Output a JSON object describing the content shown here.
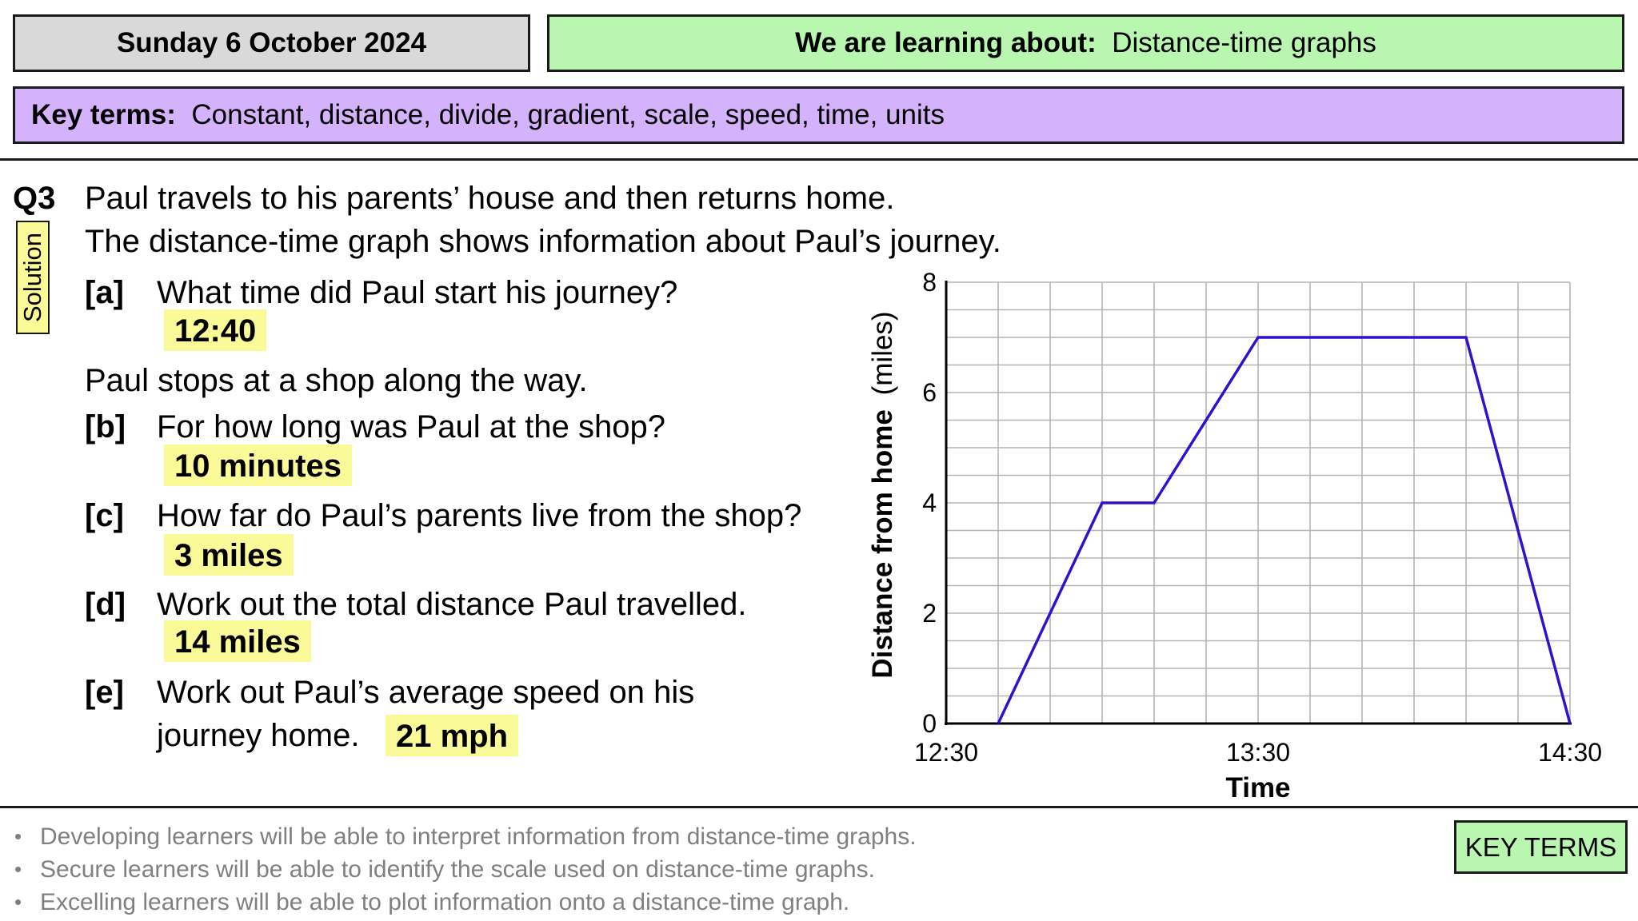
{
  "header": {
    "date": "Sunday 6 October 2024",
    "learning_label": "We are learning about:",
    "learning_topic": "Distance-time graphs",
    "key_terms_label": "Key terms:",
    "key_terms": "Constant, distance, divide, gradient, scale, speed, time, units"
  },
  "question": {
    "number": "Q3",
    "solution_label": "Solution",
    "intro_1": "Paul travels to his parents’ house and then returns home.",
    "intro_2": "The distance-time graph shows information about Paul’s journey.",
    "a_label": "[a]",
    "a_text": "What time did Paul start his journey?",
    "a_answer": "12:40",
    "shop_text": "Paul stops at a shop along the way.",
    "b_label": "[b]",
    "b_text": "For how long was Paul at the shop?",
    "b_answer": "10 minutes",
    "c_label": "[c]",
    "c_text": "How far do Paul’s parents live from the shop?",
    "c_answer": "3 miles",
    "d_label": "[d]",
    "d_text": "Work out the total distance Paul travelled.",
    "d_answer": "14 miles",
    "e_label": "[e]",
    "e_text_1": "Work out Paul’s average speed on his",
    "e_text_2": "journey home.",
    "e_answer": "21 mph"
  },
  "objectives": [
    "Developing learners will be able to interpret information from distance-time graphs.",
    "Secure learners will be able to identify the scale used on distance-time graphs.",
    "Excelling learners will be able to plot information onto a distance-time graph."
  ],
  "key_terms_button": "KEY TERMS",
  "chart_data": {
    "type": "line",
    "xlabel": "Time",
    "ylabel_bold": "Distance from home",
    "ylabel_unit": "(miles)",
    "x_tick_labels": [
      "12:30",
      "13:30",
      "14:30"
    ],
    "y_tick_labels": [
      "0",
      "2",
      "4",
      "6",
      "8"
    ],
    "xlim_minutes_after_1230": [
      0,
      120
    ],
    "ylim": [
      0,
      8
    ],
    "grid": true,
    "line_color": "#3311cc",
    "series": [
      {
        "points": [
          {
            "time": "12:40",
            "miles": 0
          },
          {
            "time": "13:00",
            "miles": 4
          },
          {
            "time": "13:10",
            "miles": 4
          },
          {
            "time": "13:30",
            "miles": 7
          },
          {
            "time": "14:10",
            "miles": 7
          },
          {
            "time": "14:30",
            "miles": 0
          }
        ]
      }
    ]
  }
}
